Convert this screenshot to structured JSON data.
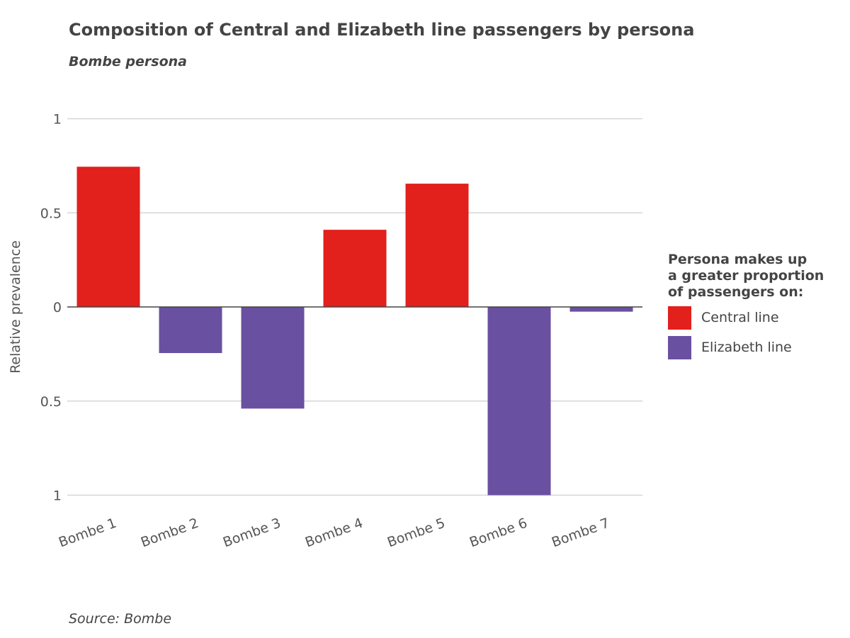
{
  "chart_data": {
    "type": "bar",
    "title": "Composition of Central and Elizabeth line passengers by persona",
    "subtitle": "Bombe persona",
    "ylabel": "Relative prevalence",
    "xlabel": "",
    "categories": [
      "Bombe 1",
      "Bombe 2",
      "Bombe 3",
      "Bombe 4",
      "Bombe 5",
      "Bombe 6",
      "Bombe 7"
    ],
    "values": [
      0.745,
      -0.245,
      -0.54,
      0.41,
      0.655,
      -1.0,
      -0.025
    ],
    "ylim": [
      -1,
      1
    ],
    "yticks": [
      1,
      0.5,
      0,
      -0.5,
      -1
    ],
    "ytick_labels": [
      "1",
      "0.5",
      "0",
      "0.5",
      "1"
    ],
    "grid": true,
    "legend": {
      "title": "Persona makes up\na greater proportion\nof passengers on:",
      "position": "right",
      "items": [
        {
          "label": "Central line",
          "color": "#e2201c"
        },
        {
          "label": "Elizabeth line",
          "color": "#6a50a0"
        }
      ]
    },
    "source": "Source: Bombe"
  }
}
